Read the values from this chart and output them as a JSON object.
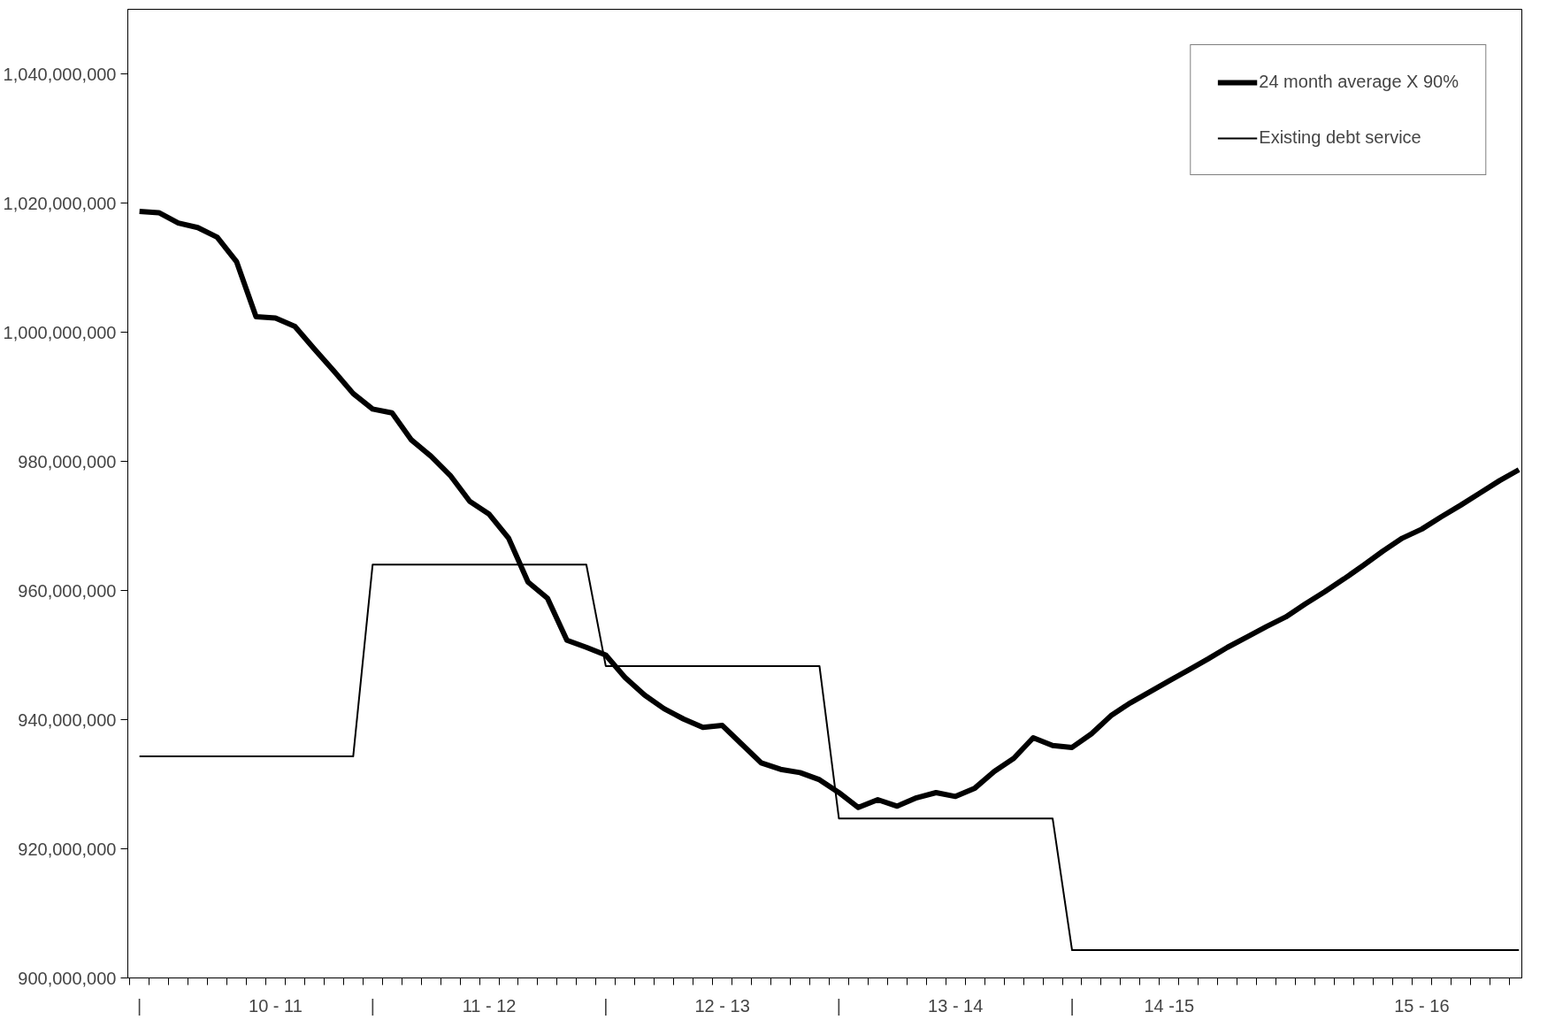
{
  "chart_data": {
    "type": "line",
    "categories": [
      "|",
      null,
      null,
      null,
      null,
      null,
      null,
      "10 - 11",
      null,
      null,
      null,
      null,
      "|",
      null,
      null,
      null,
      null,
      null,
      "11 - 12",
      null,
      null,
      null,
      null,
      null,
      "|",
      null,
      null,
      null,
      null,
      null,
      "12 - 13",
      null,
      null,
      null,
      null,
      null,
      "|",
      null,
      null,
      null,
      null,
      null,
      "13 - 14",
      null,
      null,
      null,
      null,
      null,
      "|",
      null,
      null,
      null,
      null,
      "14 -15",
      null,
      null,
      null,
      null,
      null,
      null,
      null,
      null,
      null,
      null,
      null,
      null,
      "15 - 16",
      null,
      null,
      null,
      null,
      null
    ],
    "series": [
      {
        "name": "24 month average X 90%",
        "color": "#000000",
        "values": [
          1018700000,
          1018500000,
          1016900000,
          1016200000,
          1014700000,
          1010900000,
          1002400000,
          1002200000,
          1000900000,
          997400000,
          994000000,
          990500000,
          988100000,
          987500000,
          983300000,
          980800000,
          977800000,
          973800000,
          971800000,
          968100000,
          961300000,
          958800000,
          952300000,
          951200000,
          950000000,
          946500000,
          943800000,
          941700000,
          940100000,
          938800000,
          939100000,
          936200000,
          933300000,
          932300000,
          931800000,
          930700000,
          928700000,
          926400000,
          927600000,
          926600000,
          927900000,
          928700000,
          928100000,
          929400000,
          932000000,
          934000000,
          937200000,
          936000000,
          935700000,
          937800000,
          940600000,
          942600000,
          944300000,
          946000000,
          947700000,
          949400000,
          951200000,
          952800000,
          954400000,
          955900000,
          957900000,
          959800000,
          961800000,
          963900000,
          966100000,
          968100000,
          969500000,
          971400000,
          973200000,
          975100000,
          977000000,
          978700000
        ]
      },
      {
        "name": "Existing debt service",
        "color": "#000000",
        "values": [
          934300000,
          934300000,
          934300000,
          934300000,
          934300000,
          934300000,
          934300000,
          934300000,
          934300000,
          934300000,
          934300000,
          934300000,
          964000000,
          964000000,
          964000000,
          964000000,
          964000000,
          964000000,
          964000000,
          964000000,
          964000000,
          964000000,
          964000000,
          964000000,
          948300000,
          948300000,
          948300000,
          948300000,
          948300000,
          948300000,
          948300000,
          948300000,
          948300000,
          948300000,
          948300000,
          948300000,
          924700000,
          924700000,
          924700000,
          924700000,
          924700000,
          924700000,
          924700000,
          924700000,
          924700000,
          924700000,
          924700000,
          924700000,
          904300000,
          904300000,
          904300000,
          904300000,
          904300000,
          904300000,
          904300000,
          904300000,
          904300000,
          904300000,
          904300000,
          904300000,
          904300000,
          904300000,
          904300000,
          904300000,
          904300000,
          904300000,
          904300000,
          904300000,
          904300000,
          904300000,
          904300000,
          904300000
        ]
      }
    ],
    "ylim": [
      900000000,
      1050000000
    ],
    "yticks": [
      {
        "value": 900000000,
        "label": "900,000,000"
      },
      {
        "value": 920000000,
        "label": "920,000,000"
      },
      {
        "value": 940000000,
        "label": "940,000,000"
      },
      {
        "value": 960000000,
        "label": "960,000,000"
      },
      {
        "value": 980000000,
        "label": "980,000,000"
      },
      {
        "value": 1000000000,
        "label": "1,000,000,000"
      },
      {
        "value": 1020000000,
        "label": "1,020,000,000"
      },
      {
        "value": 1040000000,
        "label": "1,040,000,000"
      }
    ],
    "grid": false,
    "legend": "top right",
    "marker": "none",
    "line_style": "solid"
  }
}
